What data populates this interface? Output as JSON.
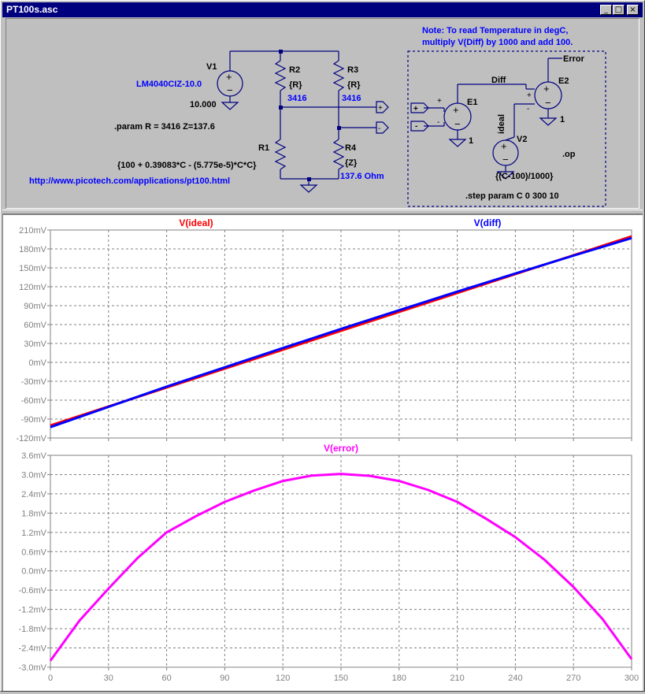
{
  "window": {
    "title": "PT100s.asc",
    "minimize": "_",
    "maximize": "□",
    "close": "×"
  },
  "schematic": {
    "note_line1": "Note: To read Temperature in degC,",
    "note_line2": "multiply V(Diff) by 1000 and add 100.",
    "v1_name": "V1",
    "v1_model": "LM4040CIZ-10.0",
    "v1_value": "10.000",
    "param_line": ".param R = 3416 Z=137.6",
    "r1_name": "R1",
    "r1_expr": "{100 + 0.39083*C - (5.775e-5)*C*C}",
    "r2_name": "R2",
    "r2_value": "{R}",
    "r2_num": "3416",
    "r3_name": "R3",
    "r3_value": "{R}",
    "r3_num": "3416",
    "r4_name": "R4",
    "r4_value": "{Z}",
    "r4_num": "137.6 Ohm",
    "url": "http://www.picotech.com/applications/pt100.html",
    "e1_name": "E1",
    "e1_gain": "1",
    "e2_name": "E2",
    "e2_gain": "1",
    "v2_name": "V2",
    "v2_expr": "{(C-100)/1000}",
    "net_diff": "Diff",
    "net_ideal": "ideal",
    "net_error": "Error",
    "op_cmd": ".op",
    "step_cmd": ".step param C 0 300 10",
    "port_plus": "+",
    "port_minus": "-"
  },
  "chart_data": [
    {
      "type": "line",
      "title": "",
      "xlabel": "",
      "ylabel": "",
      "xlim": [
        0,
        300
      ],
      "ylim": [
        -120,
        210
      ],
      "xticks": [
        "0",
        "30",
        "60",
        "90",
        "120",
        "150",
        "180",
        "210",
        "240",
        "270",
        "300"
      ],
      "yticks": [
        "210mV",
        "180mV",
        "150mV",
        "120mV",
        "90mV",
        "60mV",
        "30mV",
        "0mV",
        "-30mV",
        "-60mV",
        "-90mV",
        "-120mV"
      ],
      "grid": true,
      "series": [
        {
          "name": "V(ideal)",
          "color": "#ff0000",
          "x": [
            0,
            30,
            60,
            90,
            120,
            150,
            180,
            210,
            240,
            270,
            300
          ],
          "values": [
            -100,
            -70,
            -40,
            -10,
            20,
            50,
            80,
            110,
            140,
            170,
            200
          ]
        },
        {
          "name": "V(diff)",
          "color": "#0000ff",
          "x": [
            0,
            30,
            60,
            90,
            120,
            150,
            180,
            210,
            240,
            270,
            300
          ],
          "values": [
            -102.8,
            -70.6,
            -38.5,
            -7.9,
            22.8,
            53.0,
            82.8,
            112.2,
            141.0,
            169.4,
            197.2
          ]
        }
      ]
    },
    {
      "type": "line",
      "title": "",
      "xlabel": "",
      "ylabel": "",
      "xlim": [
        0,
        300
      ],
      "ylim": [
        -3.0,
        3.6
      ],
      "xticks": [
        "0",
        "30",
        "60",
        "90",
        "120",
        "150",
        "180",
        "210",
        "240",
        "270",
        "300"
      ],
      "yticks": [
        "3.6mV",
        "3.0mV",
        "2.4mV",
        "1.8mV",
        "1.2mV",
        "0.6mV",
        "0.0mV",
        "-0.6mV",
        "-1.2mV",
        "-1.8mV",
        "-2.4mV",
        "-3.0mV"
      ],
      "grid": true,
      "series": [
        {
          "name": "V(error)",
          "color": "#ff00ff",
          "x": [
            0,
            15,
            30,
            45,
            60,
            75,
            90,
            105,
            120,
            135,
            150,
            165,
            180,
            195,
            210,
            225,
            240,
            255,
            270,
            285,
            300
          ],
          "values": [
            -2.8,
            -1.55,
            -0.55,
            0.4,
            1.2,
            1.7,
            2.15,
            2.5,
            2.8,
            2.97,
            3.02,
            2.96,
            2.8,
            2.52,
            2.15,
            1.62,
            1.05,
            0.35,
            -0.5,
            -1.5,
            -2.75
          ]
        }
      ]
    }
  ]
}
